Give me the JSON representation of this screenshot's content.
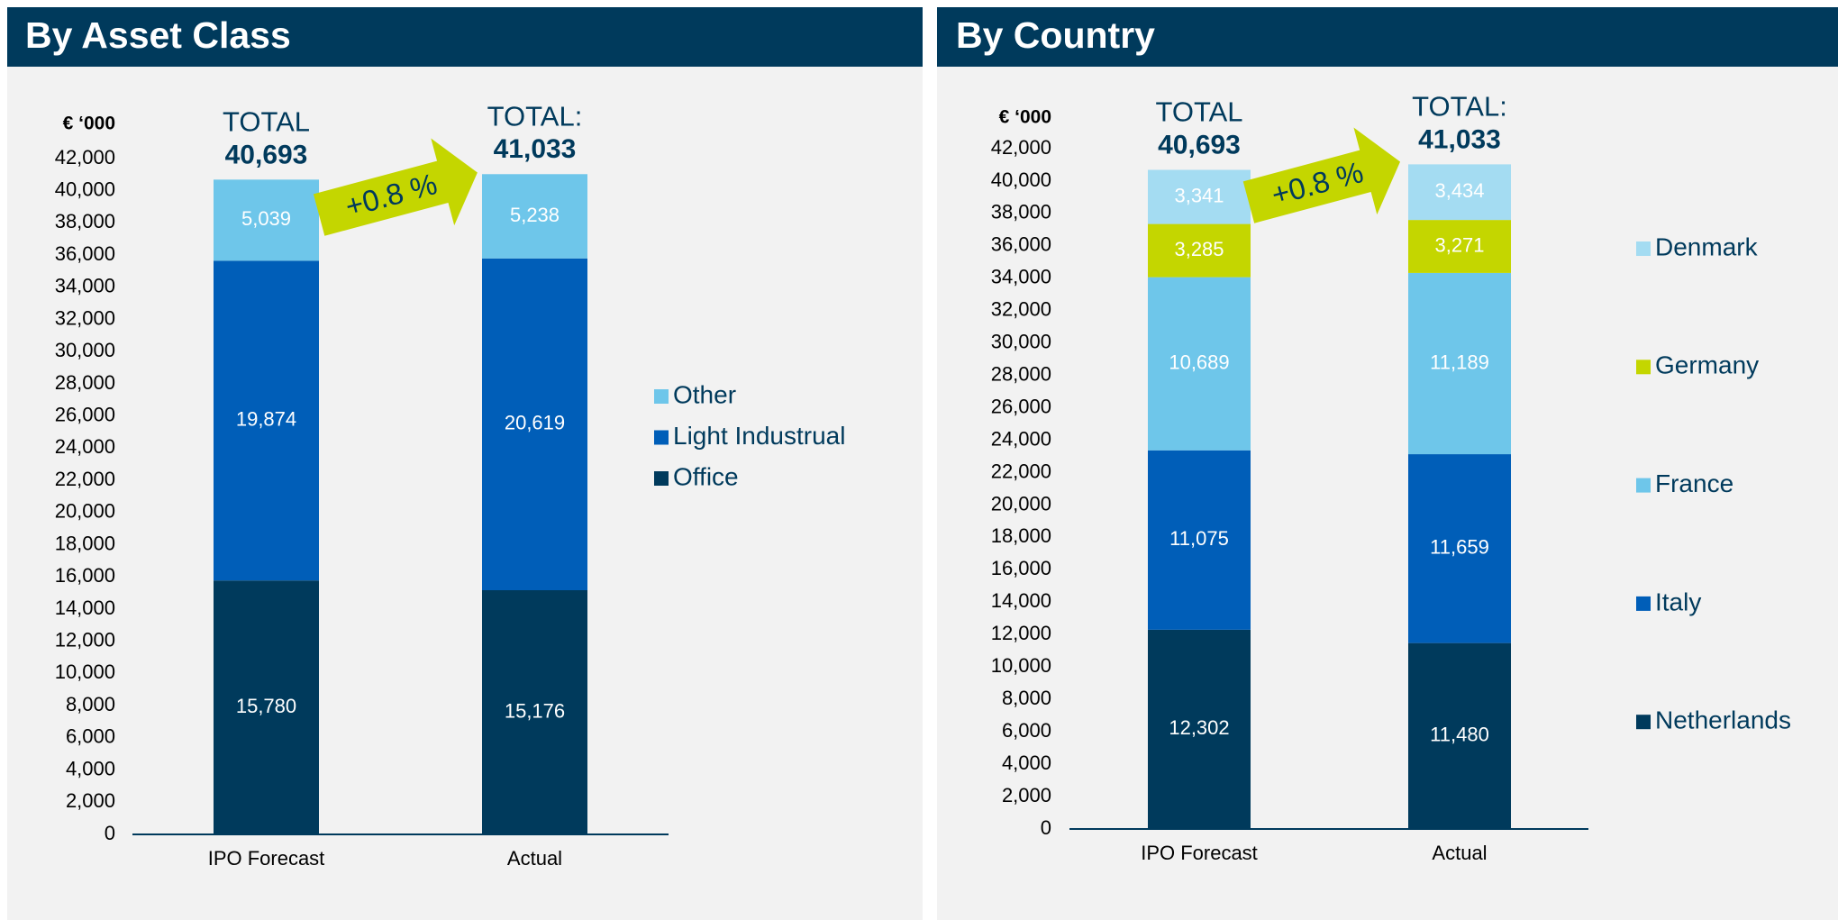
{
  "chart_data": [
    {
      "type": "stacked_bar",
      "title": "By Asset Class",
      "y_label": "€ ‘000",
      "categories": [
        "IPO Forecast",
        "Actual"
      ],
      "series": [
        {
          "name": "Office",
          "color": "#003a5c",
          "values": [
            15780,
            15176
          ],
          "value_labels": [
            "15,780",
            "15,176"
          ]
        },
        {
          "name": "Light Industrual",
          "color": "#005eb8",
          "values": [
            19874,
            20619
          ],
          "value_labels": [
            "19,874",
            "20,619"
          ]
        },
        {
          "name": "Other",
          "color": "#6ec6ea",
          "values": [
            5039,
            5238
          ],
          "value_labels": [
            "5,039",
            "5,238"
          ]
        }
      ],
      "totals": [
        {
          "label": "TOTAL",
          "value": 40693,
          "value_label": "40,693"
        },
        {
          "label": "TOTAL:",
          "value": 41033,
          "value_label": "41,033"
        }
      ],
      "annotation": "+0.8 %",
      "ylim": [
        0,
        42000
      ],
      "yticks": [
        0,
        {
          "value": 2000,
          "label": "2,000"
        },
        {
          "value": 4000,
          "label": "4,000"
        },
        {
          "value": 6000,
          "label": "6,000"
        },
        {
          "value": 8000,
          "label": "8,000"
        },
        {
          "value": 10000,
          "label": "10,000"
        },
        {
          "value": 12000,
          "label": "12,000"
        },
        {
          "value": 14000,
          "label": "14,000"
        },
        {
          "value": 16000,
          "label": "16,000"
        },
        {
          "value": 18000,
          "label": "18,000"
        },
        {
          "value": 20000,
          "label": "20,000"
        },
        {
          "value": 22000,
          "label": "22,000"
        },
        {
          "value": 24000,
          "label": "24,000"
        },
        {
          "value": 26000,
          "label": "26,000"
        },
        {
          "value": 28000,
          "label": "28,000"
        },
        {
          "value": 30000,
          "label": "30,000"
        },
        {
          "value": 32000,
          "label": "32,000"
        },
        {
          "value": 34000,
          "label": "34,000"
        },
        {
          "value": 36000,
          "label": "36,000"
        },
        {
          "value": 38000,
          "label": "38,000"
        },
        {
          "value": 40000,
          "label": "40,000"
        },
        {
          "value": 42000,
          "label": "42,000"
        }
      ],
      "legend": "right"
    },
    {
      "type": "stacked_bar",
      "title": "By Country",
      "y_label": "€ ‘000",
      "categories": [
        "IPO Forecast",
        "Actual"
      ],
      "series": [
        {
          "name": "Netherlands",
          "color": "#003a5c",
          "values": [
            12302,
            11480
          ],
          "value_labels": [
            "12,302",
            "11,480"
          ]
        },
        {
          "name": "Italy",
          "color": "#005eb8",
          "values": [
            11075,
            11659
          ],
          "value_labels": [
            "11,075",
            "11,659"
          ]
        },
        {
          "name": "France",
          "color": "#6ec6ea",
          "values": [
            10689,
            11189
          ],
          "value_labels": [
            "10,689",
            "11,189"
          ]
        },
        {
          "name": "Germany",
          "color": "#c4d600",
          "values": [
            3285,
            3271
          ],
          "value_labels": [
            "3,285",
            "3,271"
          ]
        },
        {
          "name": "Denmark",
          "color": "#a4dcf2",
          "values": [
            3341,
            3434
          ],
          "value_labels": [
            "3,341",
            "3,434"
          ]
        }
      ],
      "totals": [
        {
          "label": "TOTAL",
          "value": 40693,
          "value_label": "40,693"
        },
        {
          "label": "TOTAL:",
          "value": 41033,
          "value_label": "41,033"
        }
      ],
      "annotation": "+0.8 %",
      "ylim": [
        0,
        42000
      ],
      "yticks": [
        0,
        {
          "value": 2000,
          "label": "2,000"
        },
        {
          "value": 4000,
          "label": "4,000"
        },
        {
          "value": 6000,
          "label": "6,000"
        },
        {
          "value": 8000,
          "label": "8,000"
        },
        {
          "value": 10000,
          "label": "10,000"
        },
        {
          "value": 12000,
          "label": "12,000"
        },
        {
          "value": 14000,
          "label": "14,000"
        },
        {
          "value": 16000,
          "label": "16,000"
        },
        {
          "value": 18000,
          "label": "18,000"
        },
        {
          "value": 20000,
          "label": "20,000"
        },
        {
          "value": 22000,
          "label": "22,000"
        },
        {
          "value": 24000,
          "label": "24,000"
        },
        {
          "value": 26000,
          "label": "26,000"
        },
        {
          "value": 28000,
          "label": "28,000"
        },
        {
          "value": 30000,
          "label": "30,000"
        },
        {
          "value": 32000,
          "label": "32,000"
        },
        {
          "value": 34000,
          "label": "34,000"
        },
        {
          "value": 36000,
          "label": "36,000"
        },
        {
          "value": 38000,
          "label": "38,000"
        },
        {
          "value": 40000,
          "label": "40,000"
        },
        {
          "value": 42000,
          "label": "42,000"
        }
      ],
      "legend": "right"
    }
  ]
}
